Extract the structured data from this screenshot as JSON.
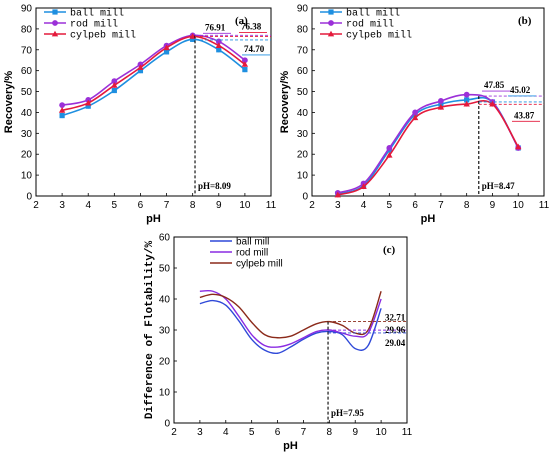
{
  "chart_data": [
    {
      "type": "line",
      "panel_label": "(a)",
      "xlabel": "pH",
      "ylabel": "Recovery/%",
      "xlim": [
        2,
        11
      ],
      "ylim": [
        0,
        90
      ],
      "xticks": [
        "2",
        "3",
        "4",
        "5",
        "6",
        "7",
        "8",
        "9",
        "10",
        "11"
      ],
      "yticks": [
        "0",
        "10",
        "20",
        "30",
        "40",
        "50",
        "60",
        "70",
        "80",
        "90"
      ],
      "legend_position": "top-left",
      "x": [
        3,
        4,
        5,
        6,
        7,
        8,
        9,
        10
      ],
      "series": [
        {
          "name": "ball mill",
          "color": "#1e8fe0",
          "marker": "square",
          "values": [
            38.5,
            43,
            50.5,
            60,
            69,
            75,
            70,
            60.5
          ]
        },
        {
          "name": "rod mill",
          "color": "#9b30d8",
          "marker": "circle",
          "values": [
            43.5,
            46,
            55,
            63,
            72,
            76.9,
            74,
            65
          ]
        },
        {
          "name": "cylpeb mill",
          "color": "#e41a3c",
          "marker": "triangle",
          "values": [
            41,
            44.5,
            53,
            61.5,
            71,
            76.4,
            72,
            63
          ]
        }
      ],
      "peak": {
        "x": 8.09,
        "label": "pH=8.09"
      },
      "annotations": [
        {
          "text": "76.91",
          "value": 76.91,
          "color": "#9b30d8"
        },
        {
          "text": "76.38",
          "value": 76.38,
          "color": "#e41a3c"
        },
        {
          "text": "74.70",
          "value": 74.7,
          "color": "#1e8fe0"
        }
      ]
    },
    {
      "type": "line",
      "panel_label": "(b)",
      "xlabel": "pH",
      "ylabel": "Recovery/%",
      "xlim": [
        2,
        11
      ],
      "ylim": [
        0,
        90
      ],
      "xticks": [
        "2",
        "3",
        "4",
        "5",
        "6",
        "7",
        "8",
        "9",
        "10",
        "11"
      ],
      "yticks": [
        "0",
        "10",
        "20",
        "30",
        "40",
        "50",
        "60",
        "70",
        "80",
        "90"
      ],
      "legend_position": "top-left",
      "x": [
        3,
        4,
        5,
        6,
        7,
        8,
        9,
        10
      ],
      "series": [
        {
          "name": "ball mill",
          "color": "#1e8fe0",
          "marker": "square",
          "values": [
            1,
            5,
            22,
            39,
            44,
            46,
            45,
            23
          ]
        },
        {
          "name": "rod mill",
          "color": "#9b30d8",
          "marker": "circle",
          "values": [
            1.5,
            6,
            23,
            40,
            45.5,
            48.5,
            45,
            23
          ]
        },
        {
          "name": "cylpeb mill",
          "color": "#e41a3c",
          "marker": "triangle",
          "values": [
            0.5,
            4.5,
            19.5,
            37.5,
            42.5,
            44,
            44,
            23.5
          ]
        }
      ],
      "peak": {
        "x": 8.47,
        "label": "pH=8.47"
      },
      "annotations": [
        {
          "text": "47.85",
          "value": 47.85,
          "color": "#9b30d8"
        },
        {
          "text": "45.02",
          "value": 45.02,
          "color": "#1e8fe0"
        },
        {
          "text": "43.87",
          "value": 43.87,
          "color": "#e41a3c"
        }
      ]
    },
    {
      "type": "line",
      "panel_label": "(c)",
      "xlabel": "pH",
      "ylabel": "Difference of Flotability/%",
      "xlim": [
        2,
        11
      ],
      "ylim": [
        0,
        60
      ],
      "xticks": [
        "2",
        "3",
        "4",
        "5",
        "6",
        "7",
        "8",
        "9",
        "10",
        "11"
      ],
      "yticks": [
        "0",
        "10",
        "20",
        "30",
        "40",
        "50",
        "60"
      ],
      "legend_position": "top-center",
      "x": [
        3,
        3.5,
        4,
        4.5,
        5,
        5.5,
        6,
        6.5,
        7,
        7.5,
        8,
        8.5,
        9,
        9.5,
        10
      ],
      "series": [
        {
          "name": "ball mill",
          "color": "#2f49d8",
          "values": [
            38.5,
            39.5,
            38,
            33,
            27,
            23.5,
            22.5,
            24.5,
            27,
            29,
            29.5,
            28.5,
            24,
            25,
            37
          ]
        },
        {
          "name": "rod mill",
          "color": "#8a2be2",
          "values": [
            42.5,
            42.5,
            40,
            34.5,
            28.5,
            25,
            24.5,
            25.5,
            27.5,
            29.5,
            30,
            29,
            28,
            29,
            40
          ]
        },
        {
          "name": "cylpeb mill",
          "color": "#8b2a1a",
          "values": [
            40.5,
            41.5,
            40.5,
            37.5,
            32.5,
            28.5,
            27.5,
            28,
            30,
            32,
            32.7,
            31.5,
            29,
            30,
            42.5
          ]
        }
      ],
      "peak": {
        "x": 7.95,
        "label": "pH=7.95"
      },
      "annotations": [
        {
          "text": "32.71",
          "value": 32.71,
          "color": "#8b2a1a"
        },
        {
          "text": "29.96",
          "value": 29.96,
          "color": "#8a2be2"
        },
        {
          "text": "29.04",
          "value": 29.04,
          "color": "#2f49d8"
        }
      ]
    }
  ]
}
